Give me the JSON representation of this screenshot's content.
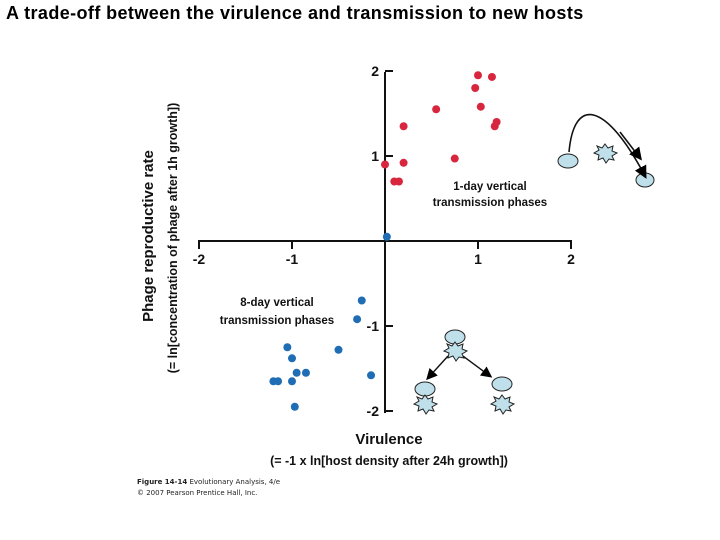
{
  "slide": {
    "title": "A trade-off between the virulence and transmission to new hosts"
  },
  "chart_data": {
    "type": "scatter",
    "xlabel": "Virulence",
    "xlabel_sub": "(= -1 x ln[host density after 24h growth])",
    "ylabel": "Phage reproductive rate",
    "ylabel_sub": "(= ln[concentration of phage after 1h growth])",
    "xlim": [
      -2,
      2
    ],
    "ylim": [
      -2,
      2
    ],
    "x_ticks": [
      "-2",
      "-1",
      "1",
      "2"
    ],
    "y_ticks": [
      "2",
      "1",
      "-1",
      "-2"
    ],
    "grid": false,
    "colors": {
      "one_day": "#d7263d",
      "eight_day": "#1f6db5"
    },
    "series": [
      {
        "name": "1-day vertical transmission phases",
        "color": "#d7263d",
        "points": [
          {
            "x": 0.0,
            "y": 0.9
          },
          {
            "x": 0.1,
            "y": 0.7
          },
          {
            "x": 0.15,
            "y": 0.7
          },
          {
            "x": 0.2,
            "y": 0.92
          },
          {
            "x": 0.2,
            "y": 1.35
          },
          {
            "x": 0.55,
            "y": 1.55
          },
          {
            "x": 0.75,
            "y": 0.97
          },
          {
            "x": 1.0,
            "y": 1.95
          },
          {
            "x": 0.97,
            "y": 1.8
          },
          {
            "x": 1.03,
            "y": 1.58
          },
          {
            "x": 1.15,
            "y": 1.93
          },
          {
            "x": 1.18,
            "y": 1.35
          },
          {
            "x": 1.2,
            "y": 1.4
          }
        ]
      },
      {
        "name": "8-day vertical transmission phases",
        "color": "#1f6db5",
        "points": [
          {
            "x": 0.02,
            "y": 0.05
          },
          {
            "x": -0.25,
            "y": -0.7
          },
          {
            "x": -0.3,
            "y": -0.92
          },
          {
            "x": -0.5,
            "y": -1.28
          },
          {
            "x": -0.15,
            "y": -1.58
          },
          {
            "x": -1.05,
            "y": -1.25
          },
          {
            "x": -1.0,
            "y": -1.38
          },
          {
            "x": -0.95,
            "y": -1.55
          },
          {
            "x": -0.85,
            "y": -1.55
          },
          {
            "x": -1.2,
            "y": -1.65
          },
          {
            "x": -1.15,
            "y": -1.65
          },
          {
            "x": -1.0,
            "y": -1.65
          },
          {
            "x": -0.97,
            "y": -1.95
          }
        ]
      }
    ]
  },
  "caption": {
    "figure": "Figure 14-14",
    "book": "Evolutionary Analysis, 4/e",
    "copyright": "© 2007 Pearson Prentice Hall, Inc."
  },
  "icons": [
    "host-cell-icon",
    "phage-burst-icon",
    "arrow-icon"
  ]
}
